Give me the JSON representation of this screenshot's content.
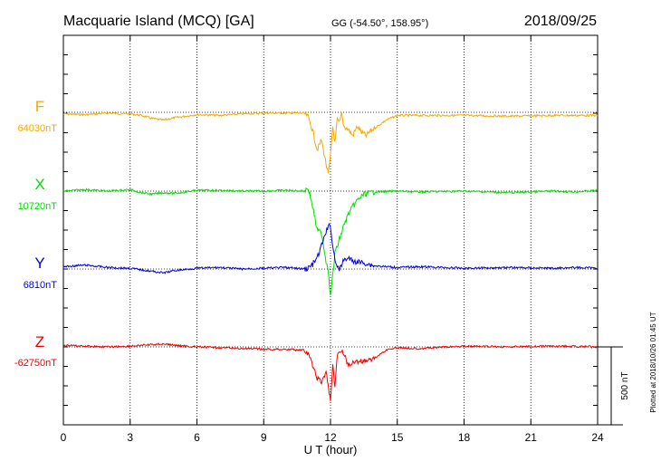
{
  "header": {
    "station": "Macquarie Island (MCQ)  [GA]",
    "coords": "GG (-54.50°, 158.95°)",
    "date": "2018/09/25"
  },
  "side_note": "Plotted at 2018/10/26 01:45 UT",
  "scale_bar_label": "500 nT",
  "colors": {
    "F": "#f4a800",
    "X": "#00dd00",
    "Y": "#0000dd",
    "Z": "#ee0000"
  },
  "chart_data": {
    "type": "line",
    "xlabel": "U T (hour)",
    "xlim": [
      0,
      24
    ],
    "x_ticks": [
      0,
      3,
      6,
      9,
      12,
      15,
      18,
      21,
      24
    ],
    "scale_nT": 500,
    "series": [
      {
        "name": "F",
        "baseline_label": "64030nT",
        "baseline_nT": 64030,
        "points": [
          [
            0,
            -10
          ],
          [
            1,
            -15
          ],
          [
            2,
            -5
          ],
          [
            3,
            -10
          ],
          [
            3.5,
            -20
          ],
          [
            4,
            -40
          ],
          [
            4.5,
            -50
          ],
          [
            5,
            -35
          ],
          [
            6,
            -15
          ],
          [
            7,
            -20
          ],
          [
            8,
            -10
          ],
          [
            9,
            -5
          ],
          [
            10,
            -5
          ],
          [
            10.8,
            -5
          ],
          [
            11,
            -30
          ],
          [
            11.2,
            -120
          ],
          [
            11.4,
            -240
          ],
          [
            11.6,
            -180
          ],
          [
            11.8,
            -330
          ],
          [
            11.9,
            -400
          ],
          [
            12.0,
            -280
          ],
          [
            12.1,
            -90
          ],
          [
            12.2,
            -200
          ],
          [
            12.3,
            -50
          ],
          [
            12.4,
            -70
          ],
          [
            12.5,
            -10
          ],
          [
            12.6,
            -90
          ],
          [
            12.8,
            -110
          ],
          [
            13,
            -150
          ],
          [
            13.2,
            -90
          ],
          [
            13.4,
            -130
          ],
          [
            13.6,
            -150
          ],
          [
            13.8,
            -120
          ],
          [
            14,
            -100
          ],
          [
            14.5,
            -50
          ],
          [
            15,
            -20
          ],
          [
            16,
            -20
          ],
          [
            18,
            -20
          ],
          [
            20,
            -25
          ],
          [
            22,
            -20
          ],
          [
            24,
            -20
          ]
        ]
      },
      {
        "name": "X",
        "baseline_label": "10720nT",
        "baseline_nT": 10720,
        "points": [
          [
            0,
            0
          ],
          [
            1,
            10
          ],
          [
            2,
            0
          ],
          [
            3,
            10
          ],
          [
            3.5,
            -10
          ],
          [
            4,
            -20
          ],
          [
            4.5,
            -10
          ],
          [
            5,
            -15
          ],
          [
            6,
            5
          ],
          [
            7,
            5
          ],
          [
            8,
            0
          ],
          [
            9,
            0
          ],
          [
            10,
            5
          ],
          [
            10.8,
            0
          ],
          [
            11,
            20
          ],
          [
            11.2,
            -100
          ],
          [
            11.4,
            -250
          ],
          [
            11.6,
            -270
          ],
          [
            11.8,
            -450
          ],
          [
            11.9,
            -500
          ],
          [
            12.0,
            -680
          ],
          [
            12.1,
            -540
          ],
          [
            12.2,
            -400
          ],
          [
            12.4,
            -310
          ],
          [
            12.6,
            -220
          ],
          [
            12.8,
            -150
          ],
          [
            13,
            -100
          ],
          [
            13.2,
            -60
          ],
          [
            13.5,
            -20
          ],
          [
            14,
            -5
          ],
          [
            15,
            0
          ],
          [
            16,
            -5
          ],
          [
            18,
            0
          ],
          [
            20,
            -10
          ],
          [
            22,
            0
          ],
          [
            23,
            -5
          ],
          [
            24,
            5
          ]
        ]
      },
      {
        "name": "Y",
        "baseline_label": "6810nT",
        "baseline_nT": 6810,
        "points": [
          [
            0,
            15
          ],
          [
            1,
            25
          ],
          [
            2,
            10
          ],
          [
            3,
            5
          ],
          [
            3.5,
            -5
          ],
          [
            4,
            -15
          ],
          [
            4.5,
            -25
          ],
          [
            5,
            -10
          ],
          [
            6,
            5
          ],
          [
            7,
            10
          ],
          [
            8,
            0
          ],
          [
            9,
            5
          ],
          [
            10,
            10
          ],
          [
            10.8,
            0
          ],
          [
            11,
            5
          ],
          [
            11.2,
            30
          ],
          [
            11.4,
            70
          ],
          [
            11.6,
            150
          ],
          [
            11.8,
            240
          ],
          [
            11.9,
            270
          ],
          [
            12.0,
            280
          ],
          [
            12.1,
            140
          ],
          [
            12.2,
            70
          ],
          [
            12.3,
            20
          ],
          [
            12.4,
            -10
          ],
          [
            12.6,
            60
          ],
          [
            12.8,
            70
          ],
          [
            13,
            50
          ],
          [
            13.5,
            40
          ],
          [
            14,
            20
          ],
          [
            15,
            10
          ],
          [
            16,
            15
          ],
          [
            18,
            5
          ],
          [
            20,
            10
          ],
          [
            22,
            5
          ],
          [
            23,
            10
          ],
          [
            24,
            5
          ]
        ]
      },
      {
        "name": "Z",
        "baseline_label": "-62750nT",
        "baseline_nT": -62750,
        "points": [
          [
            0,
            10
          ],
          [
            1,
            5
          ],
          [
            2,
            0
          ],
          [
            3,
            5
          ],
          [
            3.5,
            10
          ],
          [
            4,
            15
          ],
          [
            4.5,
            20
          ],
          [
            5,
            10
          ],
          [
            6,
            0
          ],
          [
            7,
            -5
          ],
          [
            8,
            -10
          ],
          [
            9,
            -15
          ],
          [
            10,
            -15
          ],
          [
            10.8,
            -20
          ],
          [
            11,
            -50
          ],
          [
            11.2,
            -120
          ],
          [
            11.4,
            -200
          ],
          [
            11.6,
            -230
          ],
          [
            11.8,
            -160
          ],
          [
            11.9,
            -250
          ],
          [
            12.0,
            -350
          ],
          [
            12.1,
            -120
          ],
          [
            12.2,
            -270
          ],
          [
            12.3,
            -60
          ],
          [
            12.4,
            -20
          ],
          [
            12.6,
            -40
          ],
          [
            12.8,
            -120
          ],
          [
            13,
            -100
          ],
          [
            13.5,
            -90
          ],
          [
            14,
            -70
          ],
          [
            14.5,
            -20
          ],
          [
            15,
            -5
          ],
          [
            16,
            -10
          ],
          [
            18,
            5
          ],
          [
            20,
            0
          ],
          [
            22,
            5
          ],
          [
            24,
            0
          ]
        ]
      }
    ]
  }
}
